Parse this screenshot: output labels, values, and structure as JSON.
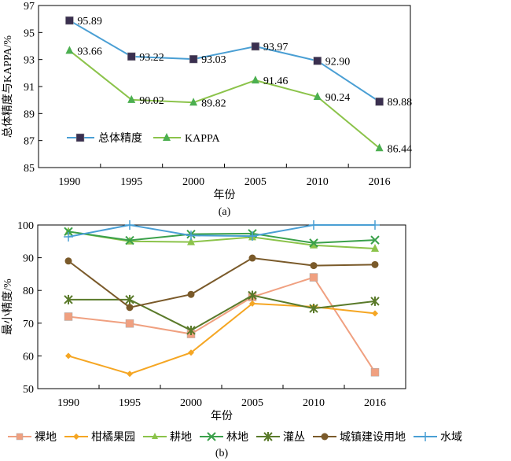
{
  "chart_data": [
    {
      "type": "line",
      "caption": "(a)",
      "title": "",
      "xlabel": "年份",
      "ylabel": "总体精度与KAPPA/%",
      "categories": [
        "1990",
        "1995",
        "2000",
        "2005",
        "2010",
        "2016"
      ],
      "ylim": [
        85,
        97
      ],
      "yticks": [
        85,
        87,
        89,
        91,
        93,
        95,
        97
      ],
      "grid": false,
      "legend_position": "bottom-left-inside",
      "series": [
        {
          "name": "总体精度",
          "color": "#4a9fd4",
          "marker": "square",
          "marker_color": "#3a2f4f",
          "values": [
            95.89,
            93.22,
            93.03,
            93.97,
            92.9,
            89.88
          ],
          "labels": [
            "95.89",
            "93.22",
            "93.03",
            "93.97",
            "92.90",
            "89.88"
          ]
        },
        {
          "name": "KAPPA",
          "color": "#8bc34a",
          "marker": "triangle",
          "marker_color": "#4caf50",
          "values": [
            93.66,
            90.02,
            89.82,
            91.46,
            90.24,
            86.44
          ],
          "labels": [
            "93.66",
            "90.02",
            "89.82",
            "91.46",
            "90.24",
            "86.44"
          ]
        }
      ]
    },
    {
      "type": "line",
      "caption": "(b)",
      "title": "",
      "xlabel": "年份",
      "ylabel": "最小精度/%",
      "categories": [
        "1990",
        "1995",
        "2000",
        "2005",
        "2010",
        "2016"
      ],
      "ylim": [
        50,
        100
      ],
      "yticks": [
        50,
        60,
        70,
        80,
        90,
        100
      ],
      "grid": false,
      "legend_position": "bottom",
      "series": [
        {
          "name": "裸地",
          "color": "#f0a080",
          "marker": "square",
          "values": [
            72.0,
            69.9,
            66.7,
            78.0,
            84.0,
            55.0
          ]
        },
        {
          "name": "柑橘果园",
          "color": "#f5a623",
          "marker": "diamond",
          "values": [
            60.0,
            54.5,
            61.0,
            76.0,
            75.0,
            73.0
          ]
        },
        {
          "name": "耕地",
          "color": "#8bc34a",
          "marker": "triangle",
          "values": [
            98.0,
            95.0,
            94.8,
            96.3,
            93.8,
            92.8
          ]
        },
        {
          "name": "林地",
          "color": "#3aa04a",
          "marker": "x",
          "values": [
            98.0,
            95.3,
            97.2,
            97.4,
            94.5,
            95.4
          ]
        },
        {
          "name": "灌丛",
          "color": "#5a7a2a",
          "marker": "star",
          "values": [
            77.2,
            77.2,
            67.8,
            78.5,
            74.5,
            76.7
          ]
        },
        {
          "name": "城镇建设用地",
          "color": "#7a5a2a",
          "marker": "circle",
          "values": [
            89.0,
            74.8,
            78.8,
            89.9,
            87.6,
            87.9
          ]
        },
        {
          "name": "水域",
          "color": "#4a9fd4",
          "marker": "plus",
          "values": [
            96.4,
            100.0,
            96.8,
            96.6,
            100.0,
            100.0
          ]
        }
      ]
    }
  ]
}
